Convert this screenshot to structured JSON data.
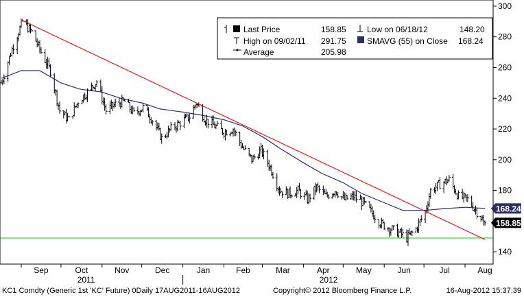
{
  "chart_data": {
    "type": "line",
    "title": "",
    "y_ticks": [
      140,
      160,
      180,
      200,
      220,
      240,
      260,
      280,
      300
    ],
    "ylim": [
      132,
      304
    ],
    "x_date_range": [
      "2011-08-17",
      "2012-08-16"
    ],
    "month_ticks": [
      {
        "date": "2011-09-01",
        "label": "Sep"
      },
      {
        "date": "2011-10-01",
        "label": "Oct"
      },
      {
        "date": "2011-11-01",
        "label": "Nov"
      },
      {
        "date": "2011-12-01",
        "label": "Dec"
      },
      {
        "date": "2012-01-01",
        "label": "Jan"
      },
      {
        "date": "2012-02-01",
        "label": "Feb"
      },
      {
        "date": "2012-03-01",
        "label": "Mar"
      },
      {
        "date": "2012-04-01",
        "label": "Apr"
      },
      {
        "date": "2012-05-01",
        "label": "May"
      },
      {
        "date": "2012-06-01",
        "label": "Jun"
      },
      {
        "date": "2012-07-01",
        "label": "Jul"
      },
      {
        "date": "2012-08-01",
        "label": "Aug"
      }
    ],
    "year_labels": [
      {
        "date": "2011-10-20",
        "label": "2011"
      },
      {
        "date": "2012-04-20",
        "label": "2012"
      }
    ],
    "year_separator_date": "2012-01-01",
    "legend": {
      "last_price_label": "Last Price",
      "last_price_value": "158.85",
      "high_label": "High on 09/02/11",
      "high_value": "291.75",
      "average_label": "Average",
      "average_value": "205.98",
      "low_label": "Low on 06/18/12",
      "low_value": "148.20",
      "smavg_label": "SMAVG (55) on Close",
      "smavg_value": "168.24"
    },
    "price_series_knots": [
      {
        "date": "2011-08-17",
        "y": 250
      },
      {
        "date": "2011-08-25",
        "y": 272
      },
      {
        "date": "2011-09-02",
        "y": 290
      },
      {
        "date": "2011-09-09",
        "y": 283
      },
      {
        "date": "2011-09-16",
        "y": 270
      },
      {
        "date": "2011-09-23",
        "y": 258
      },
      {
        "date": "2011-09-30",
        "y": 232
      },
      {
        "date": "2011-10-07",
        "y": 226
      },
      {
        "date": "2011-10-14",
        "y": 238
      },
      {
        "date": "2011-10-21",
        "y": 244
      },
      {
        "date": "2011-10-28",
        "y": 251
      },
      {
        "date": "2011-11-04",
        "y": 232
      },
      {
        "date": "2011-11-11",
        "y": 236
      },
      {
        "date": "2011-11-18",
        "y": 238
      },
      {
        "date": "2011-11-25",
        "y": 230
      },
      {
        "date": "2011-12-02",
        "y": 234
      },
      {
        "date": "2011-12-09",
        "y": 226
      },
      {
        "date": "2011-12-16",
        "y": 214
      },
      {
        "date": "2011-12-23",
        "y": 220
      },
      {
        "date": "2011-12-30",
        "y": 224
      },
      {
        "date": "2012-01-06",
        "y": 228
      },
      {
        "date": "2012-01-11",
        "y": 237
      },
      {
        "date": "2012-01-18",
        "y": 226
      },
      {
        "date": "2012-01-25",
        "y": 222
      },
      {
        "date": "2012-02-01",
        "y": 218
      },
      {
        "date": "2012-02-08",
        "y": 220
      },
      {
        "date": "2012-02-15",
        "y": 208
      },
      {
        "date": "2012-02-22",
        "y": 200
      },
      {
        "date": "2012-02-29",
        "y": 206
      },
      {
        "date": "2012-03-07",
        "y": 195
      },
      {
        "date": "2012-03-14",
        "y": 180
      },
      {
        "date": "2012-03-21",
        "y": 178
      },
      {
        "date": "2012-03-28",
        "y": 180
      },
      {
        "date": "2012-04-04",
        "y": 174
      },
      {
        "date": "2012-04-11",
        "y": 182
      },
      {
        "date": "2012-04-18",
        "y": 176
      },
      {
        "date": "2012-04-25",
        "y": 180
      },
      {
        "date": "2012-05-02",
        "y": 174
      },
      {
        "date": "2012-05-09",
        "y": 176
      },
      {
        "date": "2012-05-16",
        "y": 172
      },
      {
        "date": "2012-05-23",
        "y": 165
      },
      {
        "date": "2012-05-30",
        "y": 158
      },
      {
        "date": "2012-06-06",
        "y": 155
      },
      {
        "date": "2012-06-13",
        "y": 152
      },
      {
        "date": "2012-06-18",
        "y": 149
      },
      {
        "date": "2012-06-25",
        "y": 155
      },
      {
        "date": "2012-07-02",
        "y": 166
      },
      {
        "date": "2012-07-06",
        "y": 180
      },
      {
        "date": "2012-07-13",
        "y": 184
      },
      {
        "date": "2012-07-20",
        "y": 187
      },
      {
        "date": "2012-07-27",
        "y": 176
      },
      {
        "date": "2012-08-03",
        "y": 174
      },
      {
        "date": "2012-08-10",
        "y": 166
      },
      {
        "date": "2012-08-16",
        "y": 158.85
      }
    ],
    "smavg_series": [
      {
        "date": "2011-08-17",
        "y": 253
      },
      {
        "date": "2011-09-01",
        "y": 258
      },
      {
        "date": "2011-09-15",
        "y": 258
      },
      {
        "date": "2011-10-01",
        "y": 250
      },
      {
        "date": "2011-10-15",
        "y": 246
      },
      {
        "date": "2011-11-01",
        "y": 244
      },
      {
        "date": "2011-11-15",
        "y": 240
      },
      {
        "date": "2011-12-01",
        "y": 237
      },
      {
        "date": "2011-12-15",
        "y": 233
      },
      {
        "date": "2012-01-01",
        "y": 231
      },
      {
        "date": "2012-01-15",
        "y": 229
      },
      {
        "date": "2012-02-01",
        "y": 226
      },
      {
        "date": "2012-02-15",
        "y": 222
      },
      {
        "date": "2012-03-01",
        "y": 215
      },
      {
        "date": "2012-03-15",
        "y": 207
      },
      {
        "date": "2012-04-01",
        "y": 198
      },
      {
        "date": "2012-04-15",
        "y": 191
      },
      {
        "date": "2012-05-01",
        "y": 185
      },
      {
        "date": "2012-05-15",
        "y": 178
      },
      {
        "date": "2012-06-01",
        "y": 172
      },
      {
        "date": "2012-06-15",
        "y": 167
      },
      {
        "date": "2012-07-01",
        "y": 167
      },
      {
        "date": "2012-07-15",
        "y": 168
      },
      {
        "date": "2012-08-01",
        "y": 169
      },
      {
        "date": "2012-08-16",
        "y": 168.24
      }
    ],
    "trendline": {
      "start": {
        "date": "2011-09-01",
        "y": 291
      },
      "end": {
        "date": "2012-08-16",
        "y": 148
      }
    },
    "support_line": {
      "y": 149
    },
    "last_price_tag": "158.85",
    "smavg_tag": "168.24",
    "colors": {
      "price": "#000000",
      "smavg": "#2b2d6b",
      "trendline": "#e62020",
      "support": "#19c419",
      "tag_bg": "#000000",
      "smavg_tag_bg": "#2b2d6b"
    }
  },
  "footer": {
    "left": "KC1 Comdty (Generic 1st 'KC' Future) 0Daily 17AUG2011-16AUG2012",
    "center": "Copyright© 2012 Bloomberg Finance L.P.",
    "right": "16-Aug-2012 15:37:39"
  }
}
